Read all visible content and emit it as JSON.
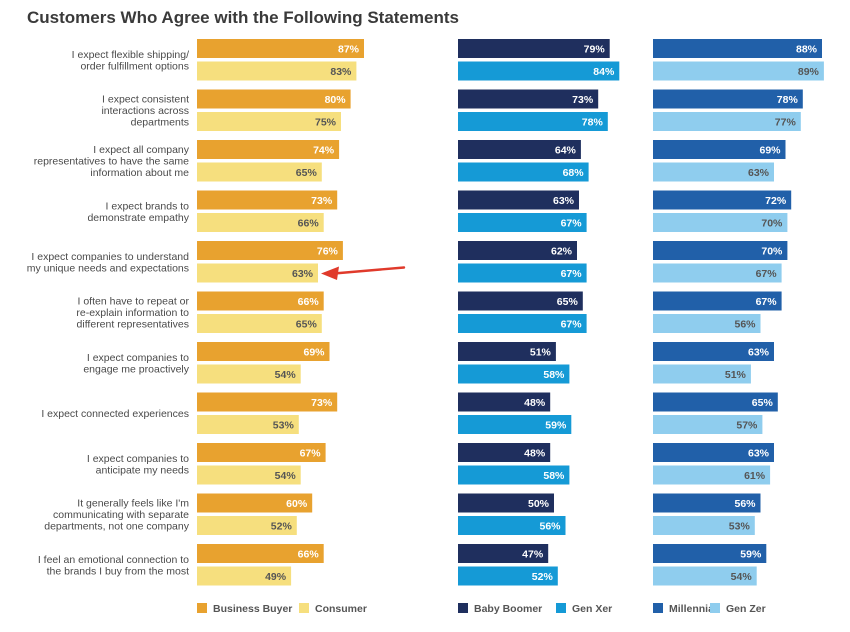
{
  "chart_data": {
    "type": "bar",
    "orientation": "horizontal",
    "title": "Customers Who Agree with the Following Statements",
    "value_format": "percent",
    "categories": [
      "I expect flexible shipping/\norder fulfillment options",
      "I expect consistent\ninteractions across\ndepartments",
      "I expect all company\nrepresentatives to have the same\ninformation about me",
      "I expect brands to\ndemonstrate empathy",
      "I expect companies to understand\nmy unique needs and expectations",
      "I often have to repeat or\nre-explain information to\ndifferent representatives",
      "I expect companies to\nengage me proactively",
      "I expect connected experiences",
      "I expect companies to\nanticipate my needs",
      "It generally feels like I'm\ncommunicating with separate\ndepartments, not one company",
      "I feel an emotional connection to\nthe brands I buy from the most"
    ],
    "panels": [
      {
        "series": [
          {
            "name": "Business Buyer",
            "color": "#e8a22f",
            "label_color": "#ffffff",
            "values": [
              87,
              80,
              74,
              73,
              76,
              66,
              69,
              73,
              67,
              60,
              66
            ]
          },
          {
            "name": "Consumer",
            "color": "#f6df7e",
            "label_color": "#555555",
            "values": [
              83,
              75,
              65,
              66,
              63,
              65,
              54,
              53,
              54,
              52,
              49
            ]
          }
        ]
      },
      {
        "series": [
          {
            "name": "Baby Boomer",
            "color": "#1f2f5e",
            "label_color": "#ffffff",
            "values": [
              79,
              73,
              64,
              63,
              62,
              65,
              51,
              48,
              48,
              50,
              47
            ]
          },
          {
            "name": "Gen Xer",
            "color": "#159ad6",
            "label_color": "#ffffff",
            "values": [
              84,
              78,
              68,
              67,
              67,
              67,
              58,
              59,
              58,
              56,
              52
            ]
          }
        ]
      },
      {
        "series": [
          {
            "name": "Millennial",
            "color": "#2160a9",
            "label_color": "#ffffff",
            "values": [
              88,
              78,
              69,
              72,
              70,
              67,
              63,
              65,
              63,
              56,
              59
            ]
          },
          {
            "name": "Gen Zer",
            "color": "#8fcdee",
            "label_color": "#555555",
            "values": [
              89,
              77,
              63,
              70,
              67,
              56,
              51,
              57,
              61,
              53,
              54
            ]
          }
        ]
      }
    ],
    "annotations": [
      {
        "type": "arrow",
        "color": "#e03a2b",
        "points_to": {
          "category_index": 4,
          "series": "Consumer"
        }
      }
    ],
    "legend": {
      "position": "bottom"
    },
    "grid": false
  }
}
